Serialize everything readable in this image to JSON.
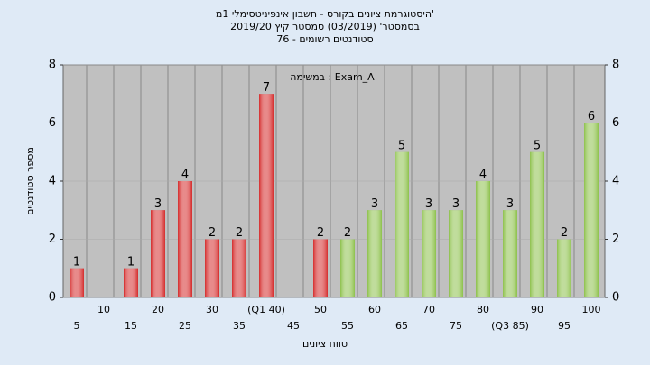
{
  "chart_data": {
    "type": "bar",
    "title": "היסטוגרמת ציונים בקורס - חשבון אינפיניטסימלי 1מ'",
    "subtitle": "בסמסטר' (03/2019) סמסטר קיץ 2019/20",
    "subtitle2": "סטודנטים רשומים - 76",
    "annotation": "במשימה : Exam_A",
    "x_label": "טווח ציונים",
    "y_label": "מספר סטודנטים",
    "categories": [
      "5",
      "10",
      "15",
      "20",
      "25",
      "30",
      "35",
      "(Q1 40)",
      "45",
      "50",
      "55",
      "60",
      "65",
      "70",
      "75",
      "80",
      "(Q3 85)",
      "90",
      "95",
      "100"
    ],
    "values": [
      1,
      0,
      1,
      3,
      4,
      2,
      2,
      7,
      0,
      2,
      2,
      3,
      5,
      3,
      3,
      4,
      3,
      5,
      2,
      6
    ],
    "colors": [
      "#d42a2a",
      "#d42a2a",
      "#d42a2a",
      "#d42a2a",
      "#d42a2a",
      "#d42a2a",
      "#d42a2a",
      "#d42a2a",
      "#d42a2a",
      "#d42a2a",
      "#8cc04a",
      "#8cc04a",
      "#8cc04a",
      "#8cc04a",
      "#8cc04a",
      "#8cc04a",
      "#8cc04a",
      "#8cc04a",
      "#8cc04a",
      "#8cc04a"
    ],
    "ylim": [
      0,
      8
    ],
    "yticks": [
      0,
      2,
      4,
      6,
      8
    ],
    "grid": true
  }
}
